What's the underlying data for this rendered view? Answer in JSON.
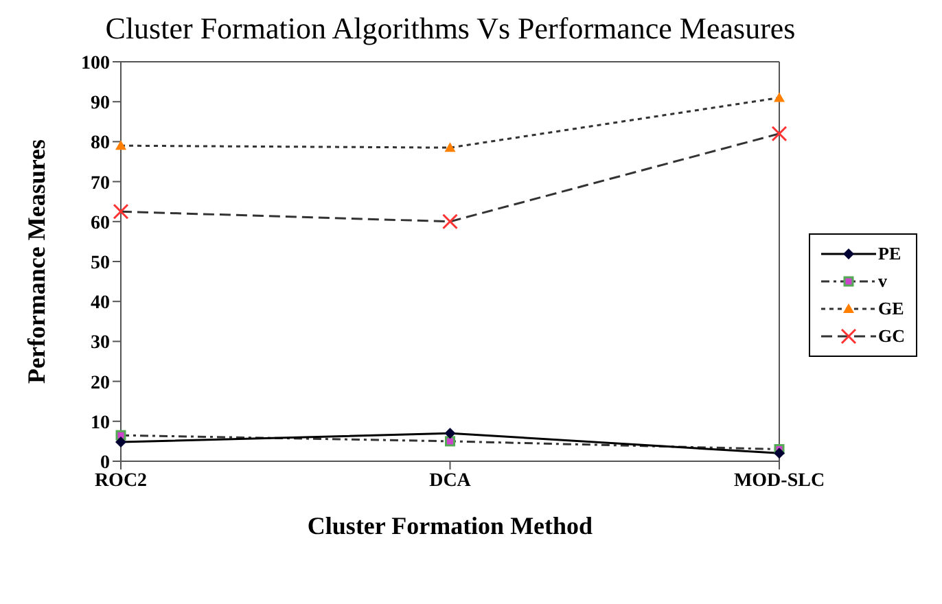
{
  "chart_data": {
    "type": "line",
    "title": "Cluster Formation Algorithms Vs Performance Measures",
    "xlabel": "Cluster Formation Method",
    "ylabel": "Performance Measures",
    "categories": [
      "ROC2",
      "DCA",
      "MOD-SLC"
    ],
    "series": [
      {
        "name": "PE",
        "color": "#000033",
        "values": [
          4.8,
          7,
          2
        ],
        "marker": "diamond",
        "line_style": "solid"
      },
      {
        "name": "v",
        "color": "#55aa55",
        "values": [
          6.5,
          5,
          3
        ],
        "marker": "square",
        "line_style": "dashdot"
      },
      {
        "name": "GE",
        "color": "#ff8000",
        "values": [
          79,
          78.5,
          91
        ],
        "marker": "triangle",
        "line_style": "dotted"
      },
      {
        "name": "GC",
        "color": "#ff3333",
        "values": [
          62.5,
          60,
          82
        ],
        "marker": "cross",
        "line_style": "dashed"
      }
    ],
    "ylim": [
      0,
      100
    ],
    "yticks": [
      0,
      10,
      20,
      30,
      40,
      50,
      60,
      70,
      80,
      90,
      100
    ],
    "grid": false,
    "legend": "right"
  }
}
